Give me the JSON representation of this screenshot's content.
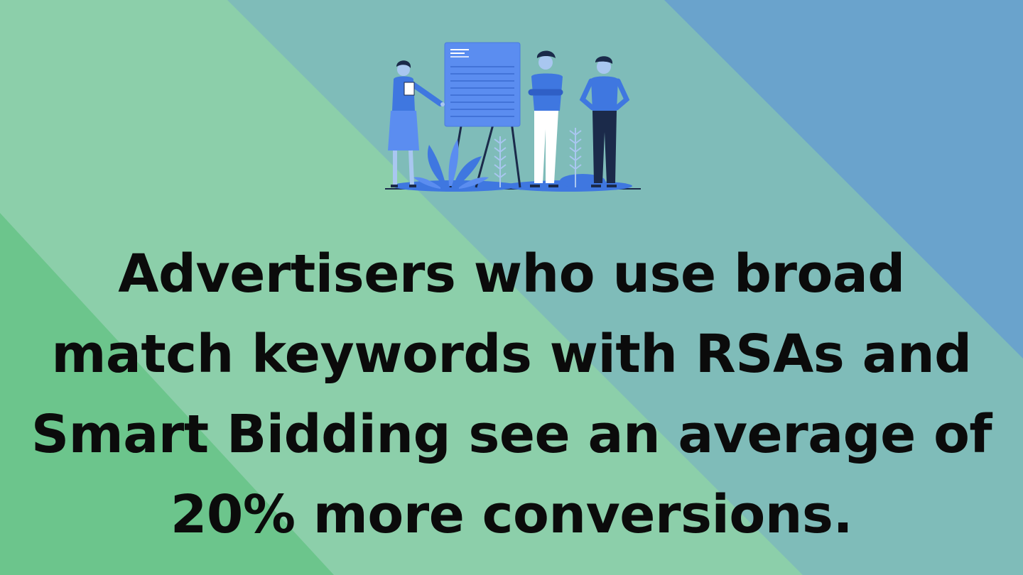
{
  "slide": {
    "headline": "Advertisers who use broad match keywords with RSAs and Smart Bidding see an average of 20% more conversions."
  },
  "colors": {
    "band_light_green": "#8ccfaa",
    "band_green": "#6cc58c",
    "band_teal": "#7fbcb9",
    "band_blue": "#6aa3cc",
    "accent_blue": "#3f77e0",
    "text": "#0b0b0b"
  },
  "illustration": {
    "icon": "team-presentation-illustration"
  }
}
